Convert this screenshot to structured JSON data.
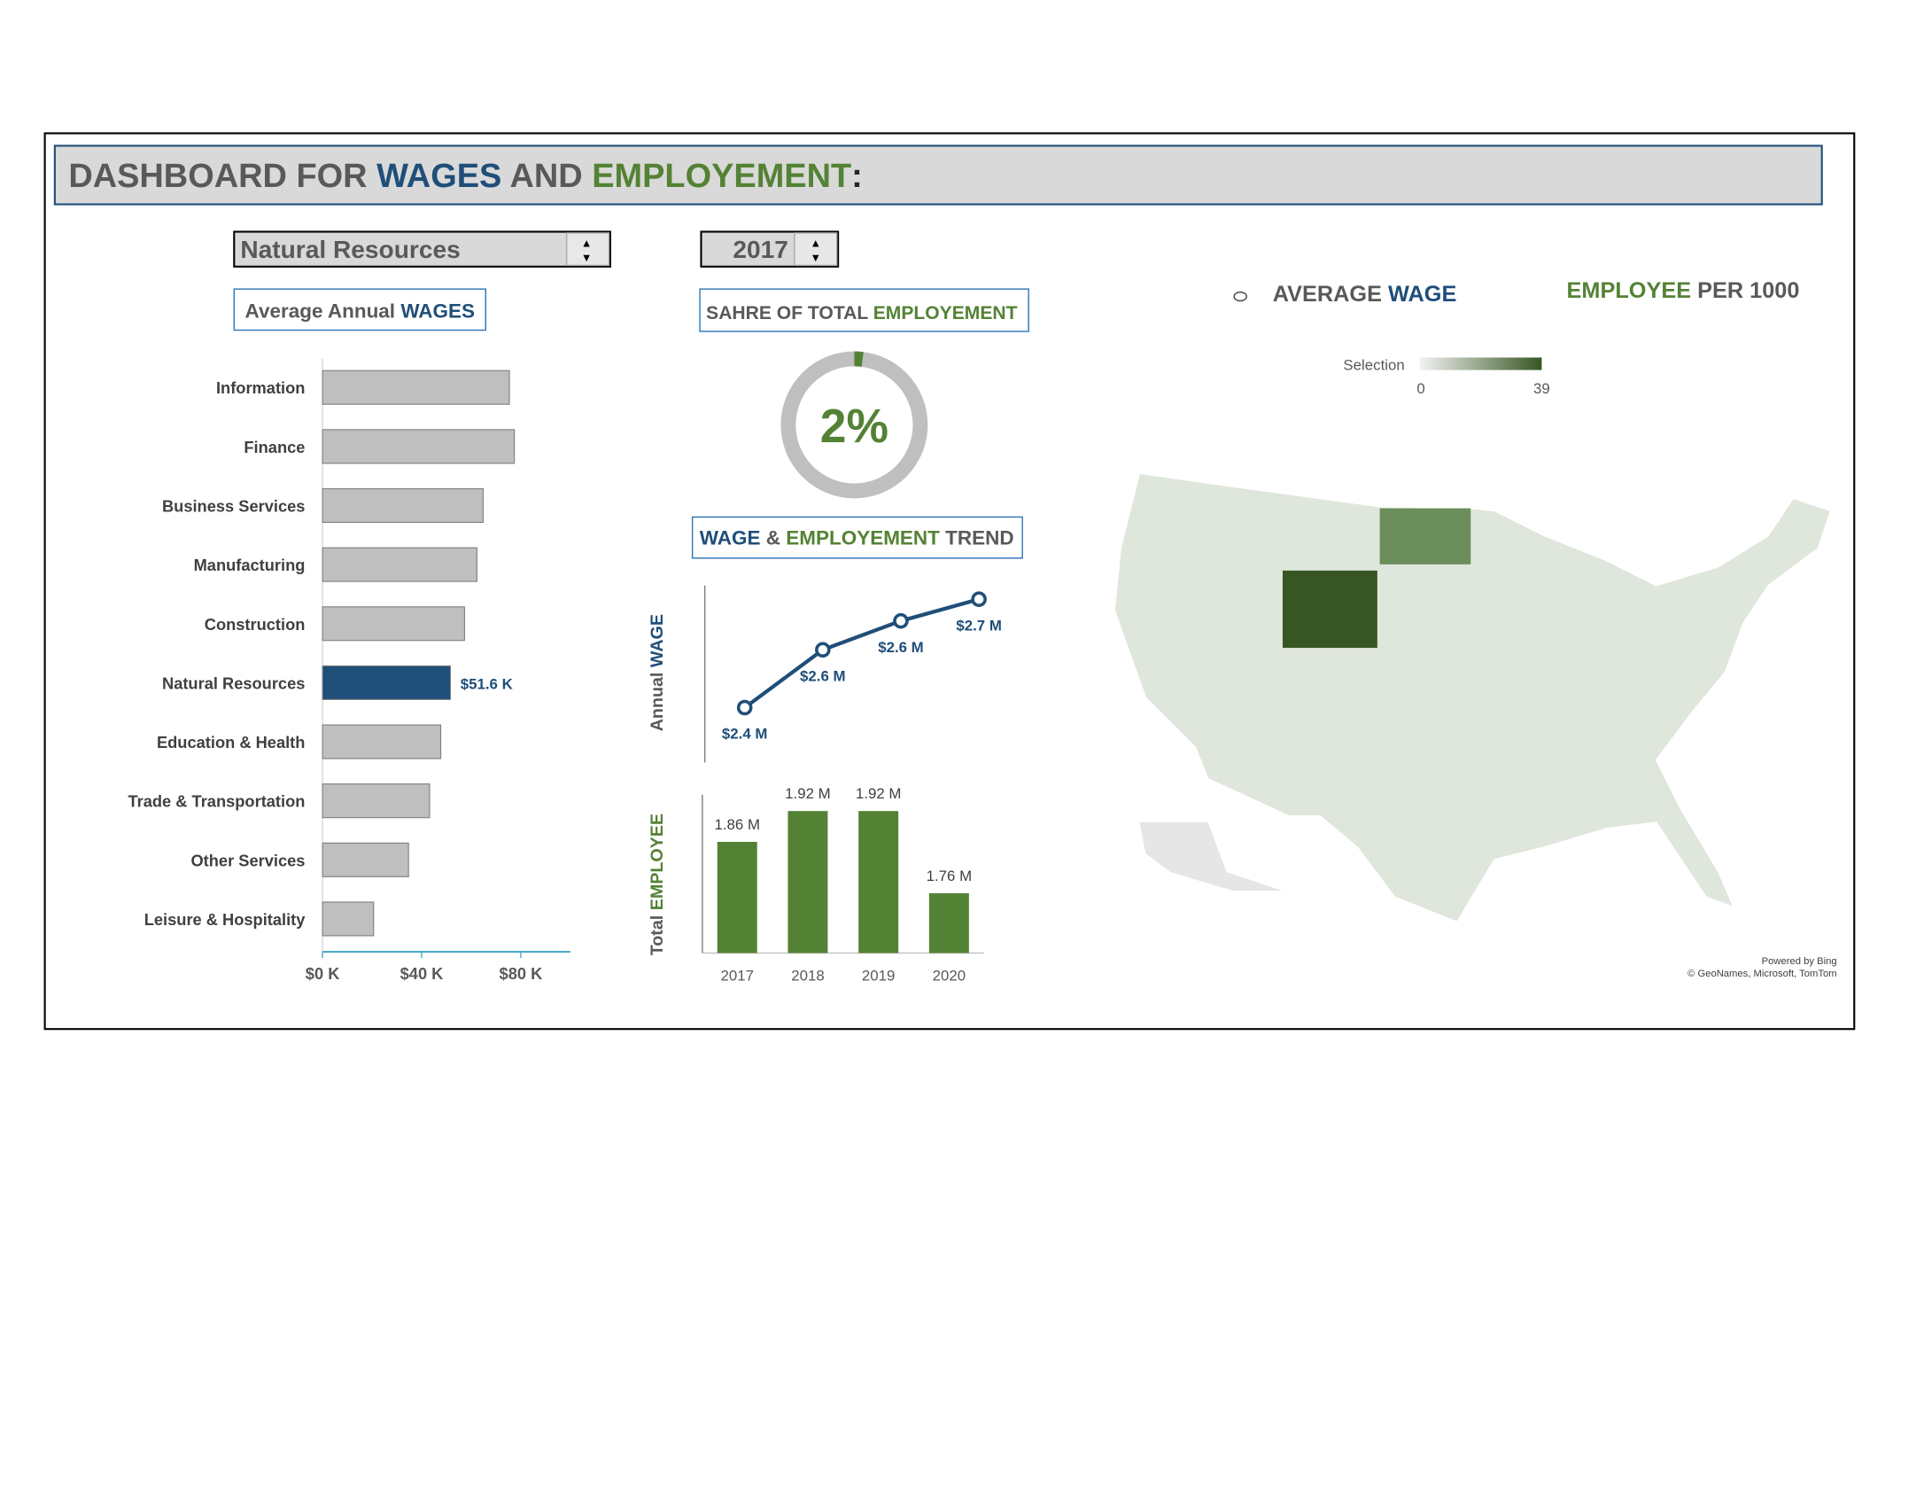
{
  "header": {
    "title": [
      {
        "text": "DASHBOARD FOR ",
        "color": "#595959"
      },
      {
        "text": "WAGES",
        "color": "#1f4e79"
      },
      {
        "text": " AND ",
        "color": "#595959"
      },
      {
        "text": "EMPLOYEMENT",
        "color": "#548235"
      },
      {
        "text": ":",
        "color": "#262626"
      }
    ]
  },
  "controls": {
    "industry": "Natural Resources",
    "year": "2017"
  },
  "chart_data": [
    {
      "type": "hbar",
      "title": [
        {
          "text": "Average Annual ",
          "color": "#595959"
        },
        {
          "text": "WAGES",
          "color": "#1f4e79"
        }
      ],
      "categories": [
        "Information",
        "Finance",
        "Business Services",
        "Manufacturing",
        "Construction",
        "Natural Resources",
        "Education & Health",
        "Trade & Transportation",
        "Other Services",
        "Leisure & Hospitality"
      ],
      "values": [
        75400,
        77400,
        64800,
        62300,
        57300,
        51600,
        47700,
        43200,
        34700,
        20600
      ],
      "value_labels": [
        null,
        null,
        null,
        null,
        null,
        "$51.6 K",
        null,
        null,
        null,
        null
      ],
      "colors": [
        "#bfbfbf",
        "#bfbfbf",
        "#bfbfbf",
        "#bfbfbf",
        "#bfbfbf",
        "#1f4e79",
        "#bfbfbf",
        "#bfbfbf",
        "#bfbfbf",
        "#bfbfbf"
      ],
      "xlim": [
        0,
        100000
      ],
      "xticks": [
        {
          "value": 0,
          "label": "$0 K"
        },
        {
          "value": 40000,
          "label": "$40 K"
        },
        {
          "value": 80000,
          "label": "$80 K"
        }
      ]
    },
    {
      "type": "donut",
      "title": [
        {
          "text": "SAHRE OF TOTAL ",
          "color": "#595959"
        },
        {
          "text": "EMPLOYEMENT",
          "color": "#548235"
        }
      ],
      "values": [
        2
      ],
      "value_labels": [
        "2%"
      ],
      "color": "#548235",
      "track_color": "#bfbfbf"
    },
    {
      "type": "line",
      "title": [
        {
          "text": "WAGE",
          "color": "#1f4e79"
        },
        {
          "text": " & ",
          "color": "#595959"
        },
        {
          "text": "EMPLOYEMENT",
          "color": "#548235"
        },
        {
          "text": " TREND",
          "color": "#595959"
        }
      ],
      "y_label": [
        {
          "text": "Annual ",
          "color": "#595959"
        },
        {
          "text": "WAGE",
          "color": "#1f4e79"
        }
      ],
      "x": [
        2017,
        2018,
        2019,
        2020
      ],
      "values": [
        2400000,
        2560000,
        2640000,
        2700000
      ],
      "value_labels": [
        "$2.4 M",
        "$2.6 M",
        "$2.6 M",
        "$2.7 M"
      ],
      "color": "#1f4e79"
    },
    {
      "type": "column",
      "y_label": [
        {
          "text": "Total ",
          "color": "#595959"
        },
        {
          "text": "EMPLOYEE",
          "color": "#548235"
        }
      ],
      "categories": [
        "2017",
        "2018",
        "2019",
        "2020"
      ],
      "values": [
        1860000,
        1920000,
        1920000,
        1760000
      ],
      "value_labels": [
        "1.86 M",
        "1.92 M",
        "1.92 M",
        "1.76 M"
      ],
      "color": "#548235"
    },
    {
      "type": "map",
      "headings": [
        [
          {
            "text": "AVERAGE ",
            "color": "#595959"
          },
          {
            "text": "WAGE",
            "color": "#1f4e79"
          }
        ],
        [
          {
            "text": "EMPLOYEE",
            "color": "#548235"
          },
          {
            "text": " PER 1000",
            "color": "#595959"
          }
        ]
      ],
      "legend": {
        "title": "Selection",
        "min": 0,
        "max": 39,
        "colors": [
          "#f2f2f2",
          "#375623"
        ]
      },
      "attribution": [
        "Powered by Bing",
        "© GeoNames, Microsoft, TomTom"
      ]
    }
  ]
}
